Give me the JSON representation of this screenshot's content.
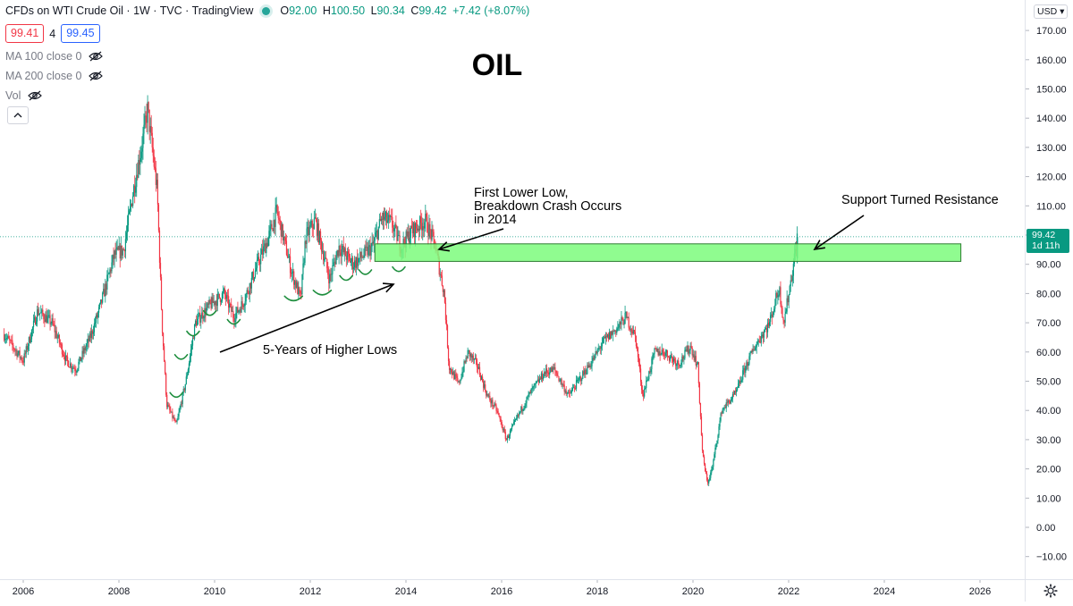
{
  "legend": {
    "title": "CFDs on WTI Crude Oil · 1W · TVC · TradingView",
    "o_label": "O",
    "o_value": "92.00",
    "h_label": "H",
    "h_value": "100.50",
    "l_label": "L",
    "l_value": "90.34",
    "c_label": "C",
    "c_value": "99.42",
    "change": "+7.42 (+8.07%)",
    "bid": "99.41",
    "spread": "4",
    "ask": "99.45"
  },
  "indicators": [
    {
      "label": "MA 100 close 0"
    },
    {
      "label": "MA 200 close 0"
    },
    {
      "label": "Vol"
    }
  ],
  "price_scale": {
    "currency": "USD",
    "labels": [
      "170.00",
      "160.00",
      "150.00",
      "140.00",
      "130.00",
      "120.00",
      "110.00",
      "100.00",
      "90.00",
      "80.00",
      "70.00",
      "60.00",
      "50.00",
      "40.00",
      "30.00",
      "20.00",
      "10.00",
      "0.00",
      "−10.00"
    ],
    "last_price": "99.42",
    "countdown": "1d 11h"
  },
  "time_scale": {
    "labels": [
      "2006",
      "2008",
      "2010",
      "2012",
      "2014",
      "2016",
      "2018",
      "2020",
      "2022",
      "2024",
      "2026"
    ]
  },
  "colors": {
    "up": "#089981",
    "down": "#f23645",
    "zone": "#7CFC7C",
    "zone_border": "#2e7d32",
    "arc": "#1e8e3e"
  },
  "chart_data": {
    "type": "line",
    "title": "OIL",
    "subtitle": "",
    "xlabel": "",
    "ylabel": "",
    "x_range": [
      2005.6,
      2027.2
    ],
    "ylim": [
      -13,
      175
    ],
    "grid": false,
    "series": [
      {
        "x": [
          2005.6,
          2006.0,
          2006.3,
          2006.6,
          2006.9,
          2007.1,
          2007.4,
          2007.6,
          2007.9,
          2008.1,
          2008.3,
          2008.5,
          2008.6,
          2008.8,
          2008.9,
          2009.0,
          2009.2,
          2009.4,
          2009.6,
          2009.9,
          2010.2,
          2010.4,
          2010.6,
          2010.9,
          2011.1,
          2011.3,
          2011.5,
          2011.6,
          2011.8,
          2011.9,
          2012.1,
          2012.3,
          2012.4,
          2012.6,
          2012.9,
          2013.1,
          2013.3,
          2013.5,
          2013.7,
          2013.9,
          2014.1,
          2014.4,
          2014.6,
          2014.8,
          2014.9,
          2015.1,
          2015.3,
          2015.5,
          2015.7,
          2015.9,
          2016.1,
          2016.4,
          2016.6,
          2016.9,
          2017.1,
          2017.4,
          2017.6,
          2017.9,
          2018.1,
          2018.4,
          2018.6,
          2018.8,
          2018.95,
          2019.2,
          2019.4,
          2019.7,
          2019.95,
          2020.1,
          2020.2,
          2020.3,
          2020.4,
          2020.6,
          2020.9,
          2021.1,
          2021.3,
          2021.6,
          2021.8,
          2021.9,
          2022.0,
          2022.1,
          2022.18
        ],
        "y": [
          66,
          57,
          74,
          70,
          57,
          54,
          65,
          75,
          93,
          95,
          115,
          133,
          143,
          115,
          70,
          42,
          35,
          50,
          70,
          76,
          80,
          72,
          77,
          90,
          98,
          108,
          95,
          88,
          78,
          99,
          105,
          92,
          85,
          96,
          90,
          93,
          96,
          106,
          104,
          96,
          101,
          105,
          97,
          80,
          55,
          49,
          60,
          55,
          45,
          40,
          30,
          40,
          46,
          53,
          54,
          45,
          50,
          57,
          63,
          68,
          72,
          65,
          45,
          60,
          60,
          56,
          62,
          55,
          25,
          15,
          20,
          40,
          46,
          55,
          62,
          70,
          82,
          70,
          80,
          90,
          99.42
        ]
      }
    ],
    "annotations": [
      {
        "text": "5-Years of Higher Lows"
      },
      {
        "text": "First Lower Low,\nBreakdown Crash Occurs\nin 2014"
      },
      {
        "text": "Support Turned Resistance"
      }
    ],
    "zone": {
      "y_low": 91,
      "y_high": 97,
      "x_start": 2013.35,
      "x_end": 2025.6
    },
    "higher_low_points": [
      [
        2009.2,
        47
      ],
      [
        2009.3,
        60
      ],
      [
        2009.55,
        68
      ],
      [
        2009.9,
        75
      ],
      [
        2010.4,
        72
      ],
      [
        2011.65,
        80
      ],
      [
        2012.25,
        82
      ],
      [
        2012.75,
        87
      ],
      [
        2013.15,
        89
      ],
      [
        2013.85,
        90
      ]
    ]
  }
}
